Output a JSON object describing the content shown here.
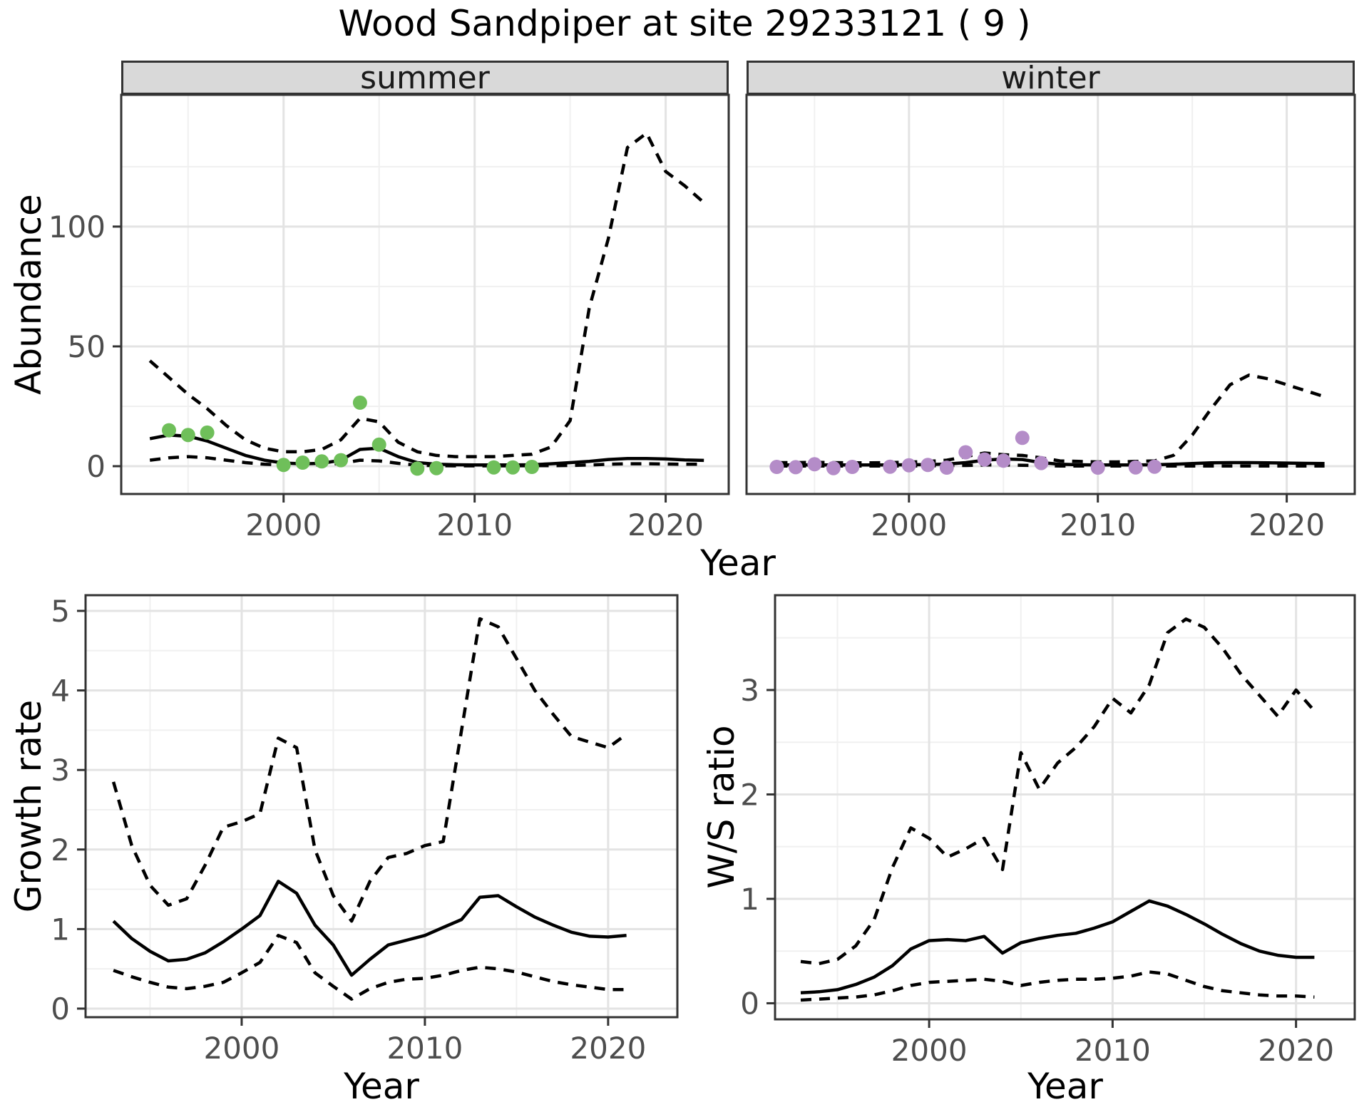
{
  "title": "Wood Sandpiper at site 29233121 ( 9 )",
  "colors": {
    "summer_points": "#6fbf5a",
    "winter_points": "#b48cc8",
    "line": "#000000",
    "grid_major": "#e3e3e3",
    "grid_minor": "#f0f0f0",
    "strip_bg": "#d9d9d9",
    "panel_border": "#333333",
    "tick_label": "#4d4d4d"
  },
  "facet_row": {
    "ylabel": "Abundance",
    "xlabel": "Year",
    "facets": [
      "summer",
      "winter"
    ]
  },
  "chart_data": [
    {
      "id": "abundance-summer",
      "type": "line",
      "facet": "summer",
      "xlabel": "Year",
      "ylabel": "Abundance",
      "xticks": [
        2000,
        2010,
        2020
      ],
      "yticks": [
        0,
        50,
        100
      ],
      "xlim": [
        1991.5,
        2023.3
      ],
      "ylim": [
        -11.6,
        155
      ],
      "x": [
        1993,
        1994,
        1995,
        1996,
        1997,
        1998,
        1999,
        2000,
        2001,
        2002,
        2003,
        2004,
        2005,
        2006,
        2007,
        2008,
        2009,
        2010,
        2011,
        2012,
        2013,
        2014,
        2015,
        2016,
        2017,
        2018,
        2019,
        2020,
        2021,
        2022
      ],
      "series": [
        {
          "name": "fit",
          "style": "solid",
          "values": [
            11.5,
            13,
            12.5,
            10.5,
            7.5,
            4.5,
            2.5,
            1.3,
            1.0,
            1.2,
            2.5,
            7.0,
            7.5,
            4.0,
            1.5,
            0.8,
            0.6,
            0.5,
            0.5,
            0.5,
            0.6,
            1.0,
            1.5,
            2.0,
            2.8,
            3.2,
            3.2,
            3.0,
            2.6,
            2.4
          ]
        },
        {
          "name": "upper-ci",
          "style": "dashed",
          "values": [
            44,
            37,
            30,
            24,
            17,
            11,
            7.5,
            6,
            6,
            7,
            11,
            20,
            18.5,
            10,
            6,
            4.5,
            4,
            4,
            4,
            4.5,
            5,
            8,
            19,
            66,
            95,
            133,
            139,
            123,
            117,
            110
          ]
        },
        {
          "name": "lower-ci",
          "style": "dashed",
          "values": [
            2.5,
            3.5,
            4,
            3.5,
            2.5,
            1.5,
            0.8,
            0.5,
            0.5,
            0.6,
            1.2,
            2.5,
            2.2,
            1.2,
            0.4,
            0.2,
            0.15,
            0.15,
            0.15,
            0.15,
            0.2,
            0.2,
            0.3,
            0.5,
            0.8,
            1.0,
            1.0,
            0.9,
            0.8,
            0.8
          ]
        }
      ],
      "points": {
        "color_key": "summer_points",
        "data": [
          [
            1994,
            15
          ],
          [
            1995,
            13
          ],
          [
            1996,
            14
          ],
          [
            2000,
            0.5
          ],
          [
            2001,
            1.5
          ],
          [
            2002,
            2
          ],
          [
            2003,
            2.5
          ],
          [
            2004,
            26.5
          ],
          [
            2005,
            9
          ],
          [
            2007,
            -1
          ],
          [
            2008,
            -0.8
          ],
          [
            2011,
            -0.5
          ],
          [
            2012,
            -0.5
          ],
          [
            2013,
            -0.3
          ]
        ]
      }
    },
    {
      "id": "abundance-winter",
      "type": "line",
      "facet": "winter",
      "xlabel": "Year",
      "ylabel": "Abundance",
      "xticks": [
        2000,
        2010,
        2020
      ],
      "yticks": [
        0,
        50,
        100
      ],
      "xlim": [
        1991.4,
        2023.6
      ],
      "ylim": [
        -11.6,
        155
      ],
      "x": [
        1993,
        1994,
        1995,
        1996,
        1997,
        1998,
        1999,
        2000,
        2001,
        2002,
        2003,
        2004,
        2005,
        2006,
        2007,
        2008,
        2009,
        2010,
        2011,
        2012,
        2013,
        2014,
        2015,
        2016,
        2017,
        2018,
        2019,
        2020,
        2021,
        2022
      ],
      "series": [
        {
          "name": "fit",
          "style": "solid",
          "values": [
            0.5,
            0.5,
            0.55,
            0.55,
            0.5,
            0.5,
            0.55,
            0.6,
            0.7,
            0.9,
            1.5,
            2.5,
            3.0,
            2.8,
            1.5,
            0.8,
            0.6,
            0.5,
            0.5,
            0.5,
            0.6,
            0.8,
            1.1,
            1.4,
            1.5,
            1.5,
            1.4,
            1.3,
            1.2,
            1.1
          ]
        },
        {
          "name": "upper-ci",
          "style": "dashed",
          "values": [
            1.5,
            1.5,
            1.6,
            1.5,
            1.4,
            1.4,
            1.5,
            1.7,
            2.0,
            2.5,
            4.0,
            5.5,
            4.8,
            4.5,
            3.5,
            2.2,
            2.0,
            1.8,
            1.8,
            2.0,
            2.2,
            4.5,
            13,
            24,
            34,
            38,
            36.5,
            34,
            31.5,
            29
          ]
        },
        {
          "name": "lower-ci",
          "style": "dashed",
          "values": [
            0.1,
            0.1,
            0.1,
            0.1,
            0.1,
            0.1,
            0.1,
            0.1,
            0.15,
            0.2,
            0.3,
            0.5,
            0.5,
            0.4,
            0.2,
            0.1,
            0.05,
            0.05,
            0.05,
            0.05,
            0.05,
            0.05,
            0.05,
            0.05,
            0.05,
            0.05,
            0.05,
            0.05,
            0.05,
            0.05
          ]
        }
      ],
      "points": {
        "color_key": "winter_points",
        "data": [
          [
            1993,
            -0.3
          ],
          [
            1994,
            -0.4
          ],
          [
            1995,
            0.8
          ],
          [
            1996,
            -0.8
          ],
          [
            1997,
            -0.3
          ],
          [
            1999,
            -0.2
          ],
          [
            2000,
            0.4
          ],
          [
            2001,
            0.5
          ],
          [
            2002,
            -0.6
          ],
          [
            2003,
            5.8
          ],
          [
            2004,
            2.8
          ],
          [
            2005,
            2.3
          ],
          [
            2006,
            11.8
          ],
          [
            2007,
            1.3
          ],
          [
            2010,
            -0.6
          ],
          [
            2012,
            -0.5
          ],
          [
            2013,
            -0.2
          ]
        ]
      }
    },
    {
      "id": "growth-rate",
      "type": "line",
      "xlabel": "Year",
      "ylabel": "Growth rate",
      "xticks": [
        2000,
        2010,
        2020
      ],
      "yticks": [
        0,
        1,
        2,
        3,
        4,
        5
      ],
      "xlim": [
        1991.48,
        2023.78
      ],
      "ylim": [
        -0.108,
        5.197
      ],
      "x": [
        1993,
        1994,
        1995,
        1996,
        1997,
        1998,
        1999,
        2000,
        2001,
        2002,
        2003,
        2004,
        2005,
        2006,
        2007,
        2008,
        2009,
        2010,
        2011,
        2012,
        2013,
        2014,
        2015,
        2016,
        2017,
        2018,
        2019,
        2020,
        2021
      ],
      "series": [
        {
          "name": "fit",
          "style": "solid",
          "values": [
            1.1,
            0.88,
            0.72,
            0.6,
            0.62,
            0.7,
            0.84,
            1.0,
            1.17,
            1.6,
            1.45,
            1.05,
            0.8,
            0.42,
            0.62,
            0.8,
            0.86,
            0.92,
            1.02,
            1.12,
            1.4,
            1.42,
            1.28,
            1.15,
            1.05,
            0.96,
            0.91,
            0.9,
            0.92
          ]
        },
        {
          "name": "upper-ci",
          "style": "dashed",
          "values": [
            2.85,
            2.05,
            1.55,
            1.3,
            1.38,
            1.8,
            2.28,
            2.35,
            2.45,
            3.4,
            3.28,
            2.0,
            1.42,
            1.1,
            1.6,
            1.9,
            1.95,
            2.05,
            2.1,
            3.5,
            4.9,
            4.8,
            4.4,
            4.0,
            3.7,
            3.42,
            3.35,
            3.28,
            3.45
          ]
        },
        {
          "name": "lower-ci",
          "style": "dashed",
          "values": [
            0.48,
            0.4,
            0.33,
            0.27,
            0.25,
            0.28,
            0.33,
            0.45,
            0.58,
            0.92,
            0.83,
            0.45,
            0.28,
            0.12,
            0.25,
            0.33,
            0.37,
            0.38,
            0.42,
            0.48,
            0.52,
            0.5,
            0.46,
            0.4,
            0.34,
            0.3,
            0.27,
            0.24,
            0.24
          ]
        }
      ]
    },
    {
      "id": "ws-ratio",
      "type": "line",
      "xlabel": "Year",
      "ylabel": "W/S ratio",
      "xticks": [
        2000,
        2010,
        2020
      ],
      "yticks": [
        0,
        1,
        2,
        3
      ],
      "xlim": [
        1991.6,
        2023.2
      ],
      "ylim": [
        -0.154,
        3.908
      ],
      "x": [
        1993,
        1994,
        1995,
        1996,
        1997,
        1998,
        1999,
        2000,
        2001,
        2002,
        2003,
        2004,
        2005,
        2006,
        2007,
        2008,
        2009,
        2010,
        2011,
        2012,
        2013,
        2014,
        2015,
        2016,
        2017,
        2018,
        2019,
        2020,
        2021
      ],
      "series": [
        {
          "name": "fit",
          "style": "solid",
          "values": [
            0.1,
            0.11,
            0.13,
            0.18,
            0.25,
            0.36,
            0.52,
            0.6,
            0.61,
            0.6,
            0.64,
            0.48,
            0.58,
            0.62,
            0.65,
            0.67,
            0.72,
            0.78,
            0.88,
            0.98,
            0.93,
            0.85,
            0.76,
            0.66,
            0.57,
            0.5,
            0.46,
            0.44,
            0.44
          ]
        },
        {
          "name": "upper-ci",
          "style": "dashed",
          "values": [
            0.4,
            0.38,
            0.42,
            0.55,
            0.8,
            1.3,
            1.68,
            1.58,
            1.4,
            1.48,
            1.58,
            1.28,
            2.4,
            2.05,
            2.3,
            2.45,
            2.65,
            2.92,
            2.78,
            3.05,
            3.55,
            3.68,
            3.6,
            3.4,
            3.15,
            2.95,
            2.75,
            3.0,
            2.8
          ]
        },
        {
          "name": "lower-ci",
          "style": "dashed",
          "values": [
            0.03,
            0.04,
            0.05,
            0.06,
            0.08,
            0.12,
            0.17,
            0.2,
            0.21,
            0.22,
            0.23,
            0.21,
            0.17,
            0.2,
            0.22,
            0.23,
            0.23,
            0.24,
            0.26,
            0.3,
            0.28,
            0.22,
            0.16,
            0.12,
            0.1,
            0.08,
            0.07,
            0.07,
            0.06
          ]
        }
      ]
    }
  ]
}
